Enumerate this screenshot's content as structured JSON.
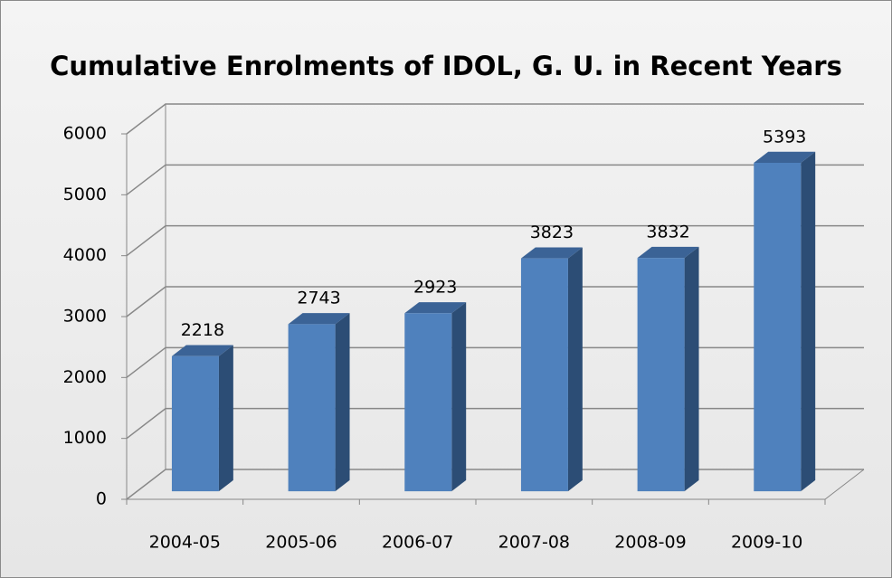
{
  "chart_data": {
    "type": "bar",
    "title": "Cumulative Enrolments of IDOL, G. U. in Recent Years",
    "categories": [
      "2004-05",
      "2005-06",
      "2006-07",
      "2007-08",
      "2008-09",
      "2009-10"
    ],
    "values": [
      2218,
      2743,
      2923,
      3823,
      3832,
      5393
    ],
    "color": "#4f81bd",
    "ylim": [
      0,
      6000
    ],
    "yticks": [
      0,
      1000,
      2000,
      3000,
      4000,
      5000,
      6000
    ],
    "grid": true
  }
}
